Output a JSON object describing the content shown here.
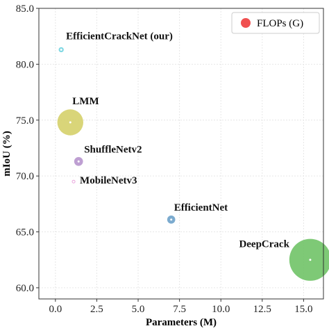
{
  "chart_data": {
    "type": "scatter",
    "xlabel": "Parameters (M)",
    "ylabel": "mIoU (%)",
    "xlim": [
      -1.0,
      16.2
    ],
    "ylim": [
      59.0,
      85.0
    ],
    "xticks": [
      0.0,
      2.5,
      5.0,
      7.5,
      10.0,
      12.5,
      15.0
    ],
    "yticks": [
      60.0,
      65.0,
      70.0,
      75.0,
      80.0,
      85.0
    ],
    "xtick_labels": [
      "0.0",
      "2.5",
      "5.0",
      "7.5",
      "10.0",
      "12.5",
      "15.0"
    ],
    "ytick_labels": [
      "60.0",
      "65.0",
      "70.0",
      "75.0",
      "80.0",
      "85.0"
    ],
    "grid": true,
    "legend": {
      "label": "FLOPs (G)",
      "position": "top-right",
      "color": "#f05050"
    },
    "series": [
      {
        "name": "EfficientCrackNet (our)",
        "x": 0.35,
        "y": 81.3,
        "size": 0.4,
        "color": "#6fd3df"
      },
      {
        "name": "LMM",
        "x": 0.9,
        "y": 74.8,
        "size": 10.4,
        "color": "#d4cf66"
      },
      {
        "name": "ShuffleNetv2",
        "x": 1.4,
        "y": 71.3,
        "size": 1.2,
        "color": "#b592cc"
      },
      {
        "name": "MobileNetv3",
        "x": 1.1,
        "y": 69.5,
        "size": 0.1,
        "color": "#e79ad8"
      },
      {
        "name": "EfficientNet",
        "x": 7.0,
        "y": 66.1,
        "size": 1.0,
        "color": "#6a9fc8"
      },
      {
        "name": "DeepCrack",
        "x": 15.4,
        "y": 62.5,
        "size": 27.0,
        "color": "#6cc163"
      }
    ]
  }
}
